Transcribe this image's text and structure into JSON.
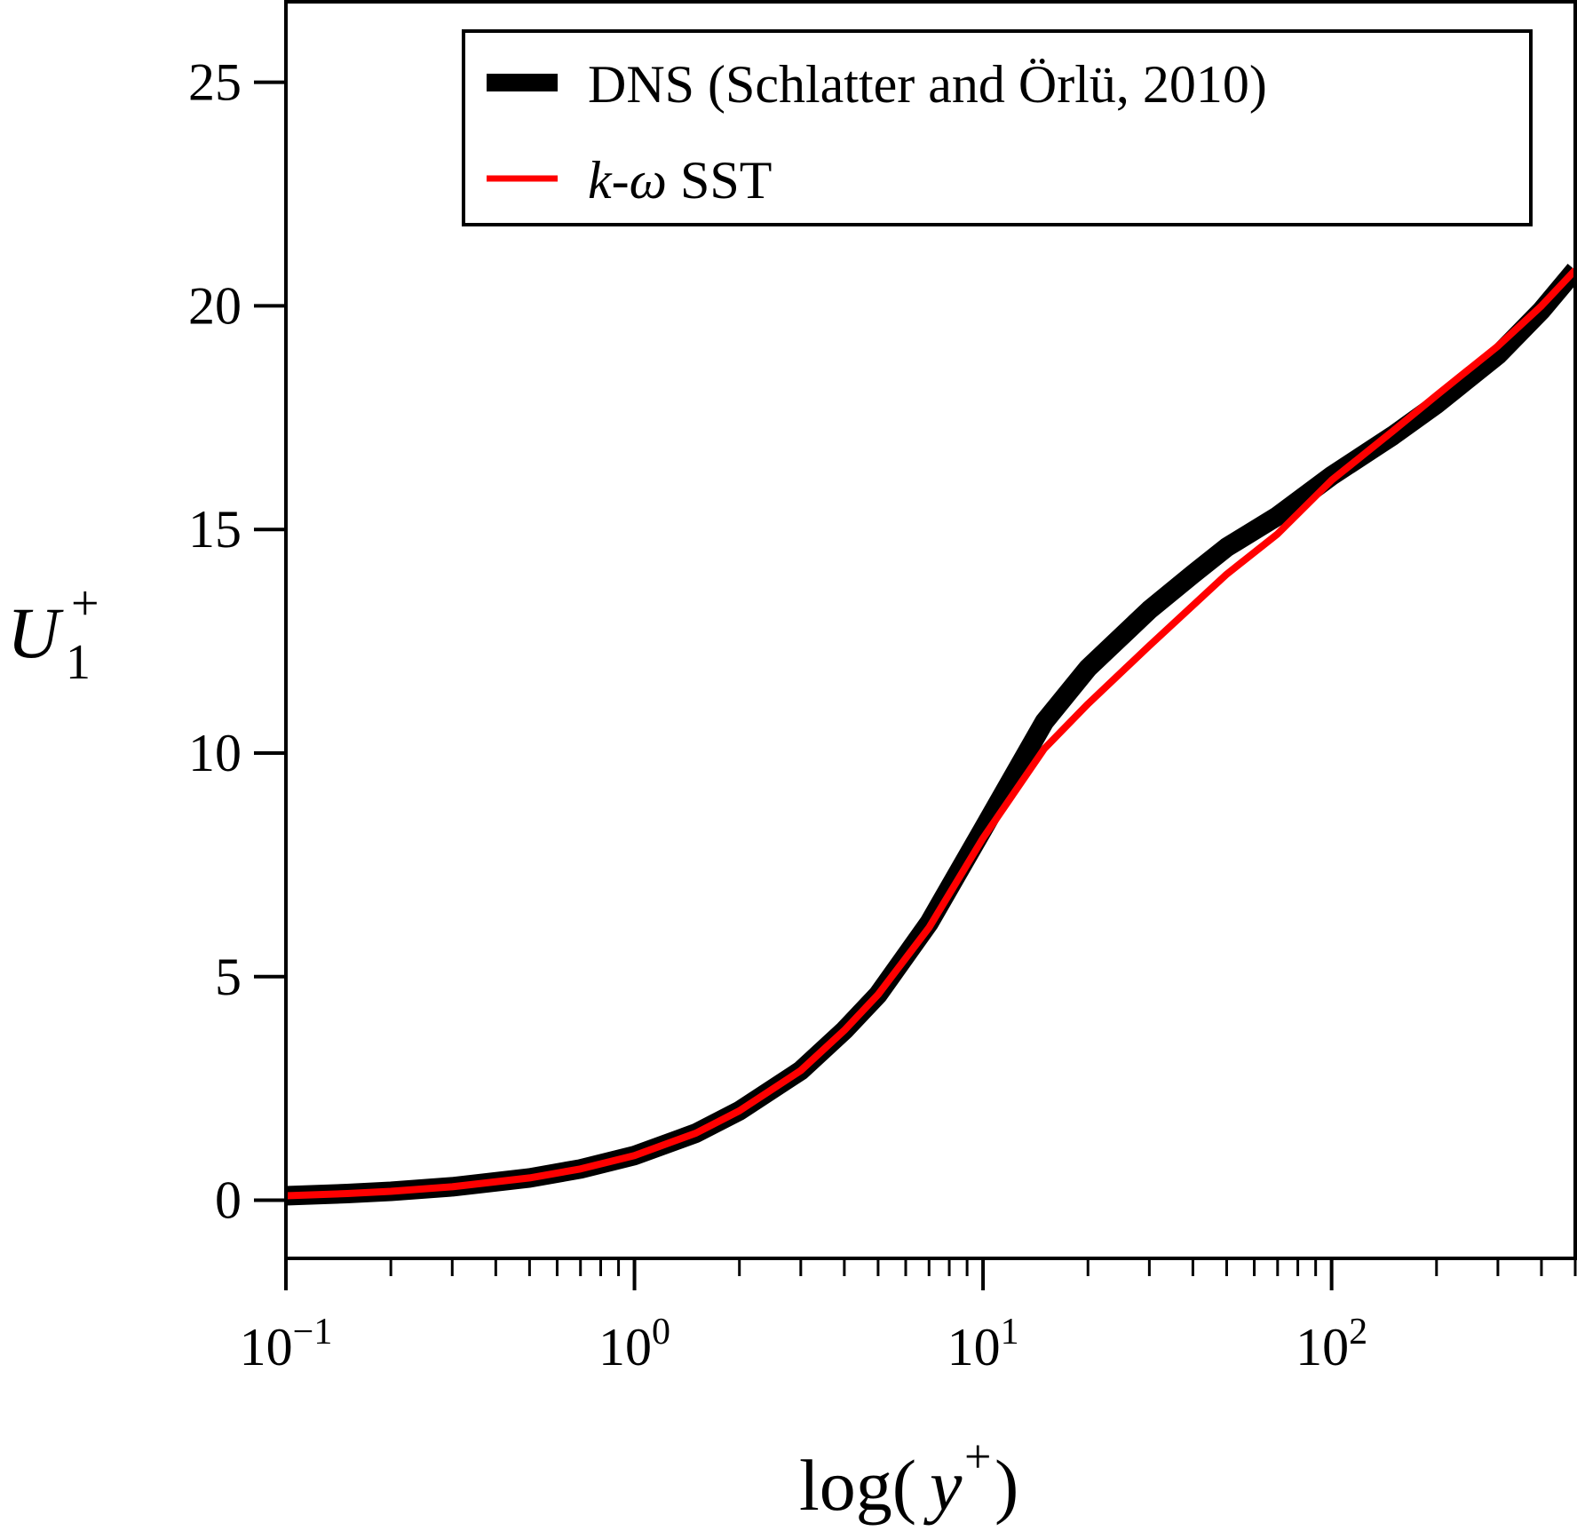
{
  "chart_data": {
    "type": "line",
    "xlabel": {
      "main": "log(",
      "var": "y",
      "sup": "+",
      "close": ")"
    },
    "ylabel": {
      "var": "U",
      "sub": "1",
      "sup": "+"
    },
    "x_scale": "log",
    "xlim": [
      0.1,
      500
    ],
    "ylim": [
      -1.3,
      26.8
    ],
    "x_ticks": [
      {
        "value": 0.1,
        "base": "10",
        "exp": "−1"
      },
      {
        "value": 1,
        "base": "10",
        "exp": "0"
      },
      {
        "value": 10,
        "base": "10",
        "exp": "1"
      },
      {
        "value": 100,
        "base": "10",
        "exp": "2"
      }
    ],
    "y_ticks": [
      {
        "value": 0,
        "label": "0"
      },
      {
        "value": 5,
        "label": "5"
      },
      {
        "value": 10,
        "label": "10"
      },
      {
        "value": 15,
        "label": "15"
      },
      {
        "value": 20,
        "label": "20"
      },
      {
        "value": 25,
        "label": "25"
      }
    ],
    "grid": false,
    "legend_position": "top-right",
    "series": [
      {
        "name": "DNS (Schlatter and Örlü, 2010)",
        "color": "#000000",
        "x": [
          0.1,
          0.15,
          0.2,
          0.3,
          0.5,
          0.7,
          1,
          1.5,
          2,
          3,
          4,
          5,
          7,
          10,
          15,
          20,
          30,
          40,
          50,
          70,
          100,
          150,
          200,
          300,
          400,
          500
        ],
        "y": [
          0.1,
          0.15,
          0.2,
          0.3,
          0.5,
          0.7,
          1.0,
          1.5,
          2.0,
          2.9,
          3.8,
          4.6,
          6.2,
          8.3,
          10.7,
          11.9,
          13.2,
          14.0,
          14.6,
          15.3,
          16.2,
          17.1,
          17.8,
          18.9,
          19.9,
          20.8
        ]
      },
      {
        "name_prefix": "k",
        "name_mid": "-",
        "name_sym": "ω",
        "name_suffix": " SST",
        "color": "#ff0000",
        "x": [
          0.1,
          0.15,
          0.2,
          0.3,
          0.5,
          0.7,
          1,
          1.5,
          2,
          3,
          4,
          5,
          7,
          10,
          15,
          20,
          30,
          40,
          50,
          70,
          100,
          150,
          200,
          300,
          400,
          500
        ],
        "y": [
          0.1,
          0.15,
          0.2,
          0.3,
          0.5,
          0.7,
          1.0,
          1.5,
          2.0,
          2.9,
          3.8,
          4.6,
          6.1,
          8.1,
          10.1,
          11.1,
          12.4,
          13.3,
          14.0,
          14.9,
          16.1,
          17.2,
          18.0,
          19.1,
          20.0,
          20.8
        ]
      }
    ]
  }
}
